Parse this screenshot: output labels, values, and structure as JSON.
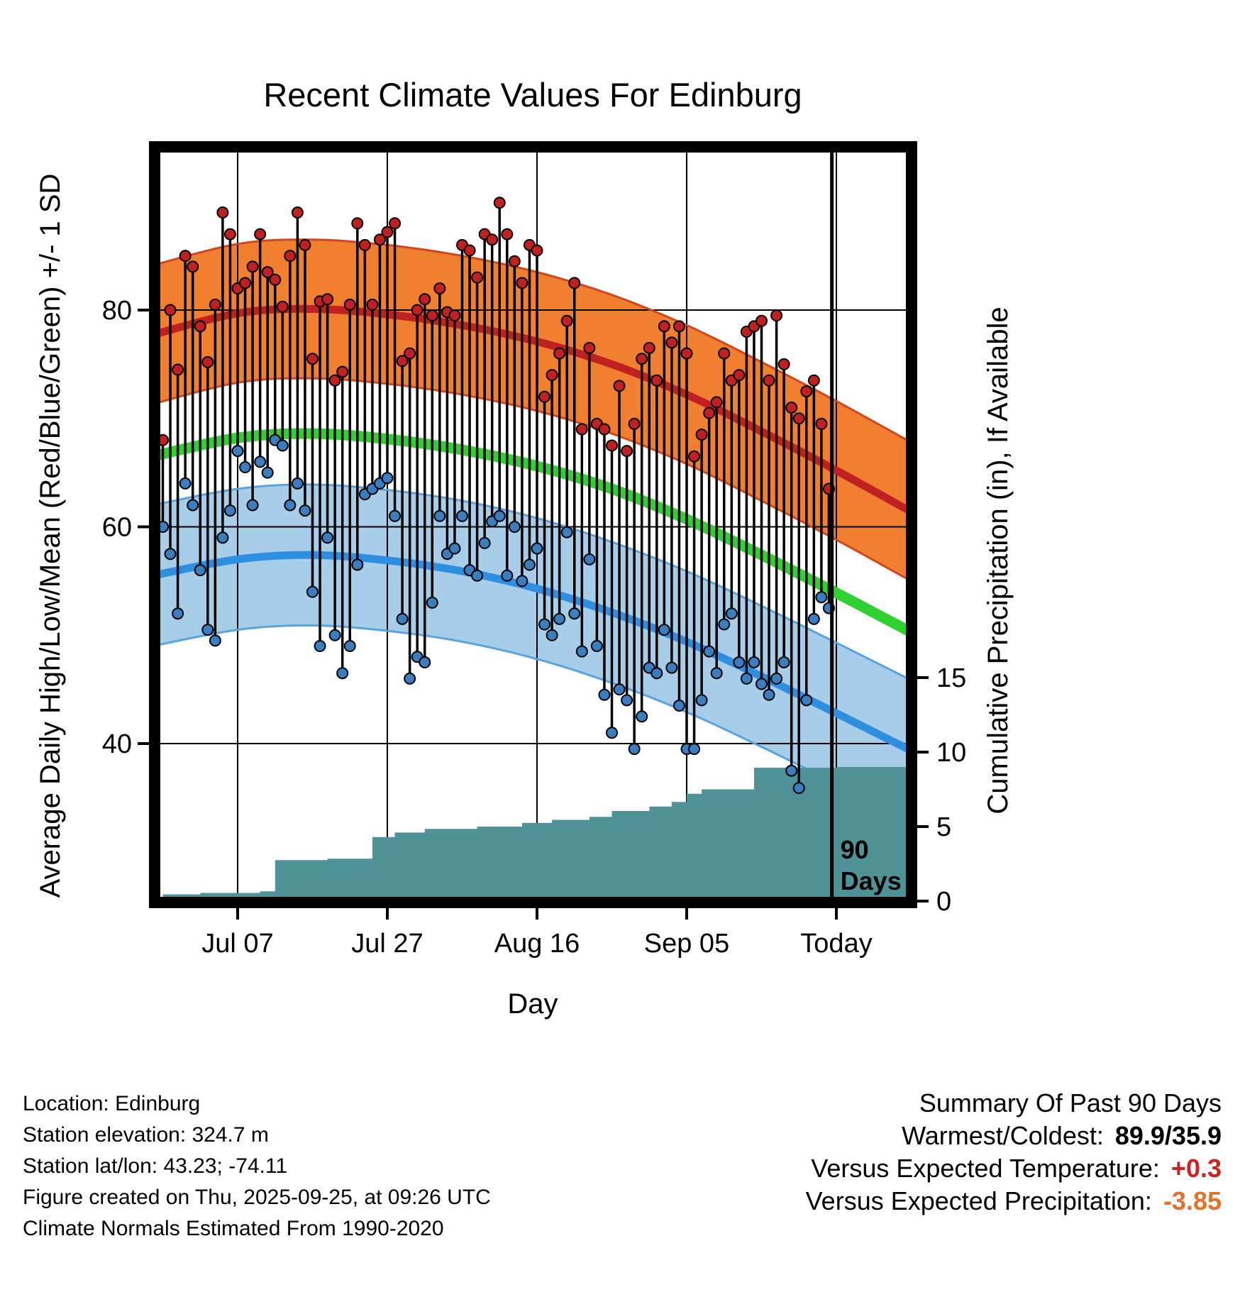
{
  "chart_data": {
    "type": "line",
    "title": "Recent Climate Values For Edinburg",
    "xlabel": "Day",
    "ylabel_left": "Average Daily High/Low/Mean (Red/Blue/Green) +/- 1 SD",
    "ylabel_right": "Cumulative Precipitation (in), If Available",
    "x_axis": {
      "unit": "day index (0 = start of 90-day window, 90 = Today)",
      "ticks": [
        {
          "day": 10,
          "label": "Jul 07"
        },
        {
          "day": 30,
          "label": "Jul 27"
        },
        {
          "day": 50,
          "label": "Aug 16"
        },
        {
          "day": 70,
          "label": "Sep 05"
        },
        {
          "day": 90,
          "label": "Today"
        }
      ],
      "range": [
        -1.1,
        100.1
      ]
    },
    "y_left_axis": {
      "ticks": [
        40,
        60,
        80
      ],
      "range": [
        25.3,
        95.1
      ]
    },
    "y_right_axis": {
      "ticks": [
        0,
        5,
        10,
        15
      ],
      "range": [
        0,
        50.6
      ]
    },
    "daily": {
      "highs": [
        68,
        80,
        74.5,
        85,
        84,
        78.5,
        75.2,
        80.5,
        89,
        87,
        82,
        82.5,
        84,
        87,
        83.5,
        82.8,
        80.3,
        85,
        89,
        86,
        75.5,
        80.8,
        81,
        73.5,
        74.3,
        80.5,
        88,
        86,
        80.5,
        86.5,
        87.2,
        88,
        75.3,
        76,
        80,
        81,
        79.5,
        82,
        79.8,
        79.5,
        86,
        85.5,
        83,
        87,
        86.5,
        89.9,
        87,
        84.5,
        82.5,
        86,
        85.5,
        72,
        74,
        76,
        79,
        82.5,
        69,
        76.5,
        69.5,
        69,
        67.5,
        73,
        67,
        69.5,
        75.5,
        76.5,
        73.5,
        78.5,
        77,
        78.5,
        76,
        66.5,
        68.5,
        70.5,
        71.5,
        76,
        73.5,
        74,
        78,
        78.5,
        79,
        73.5,
        79.5,
        75,
        71,
        70,
        72.5,
        73.5,
        69.5,
        63.5
      ],
      "lows": [
        60,
        57.5,
        52,
        64,
        62,
        56,
        50.5,
        49.5,
        59,
        61.5,
        67,
        65.5,
        62,
        66,
        65,
        68,
        67.5,
        62,
        64,
        61.5,
        54,
        49,
        59,
        50,
        46.5,
        49,
        56.5,
        63,
        63.5,
        64,
        64.5,
        61,
        51.5,
        46,
        48,
        47.5,
        53,
        61,
        57.5,
        58,
        61,
        56,
        55.5,
        58.5,
        60.5,
        61,
        55.5,
        60,
        55,
        56.5,
        58,
        51,
        50,
        51.5,
        59.5,
        52,
        48.5,
        57,
        49,
        44.5,
        41,
        45,
        44,
        39.5,
        42.5,
        47,
        46.5,
        50.5,
        47,
        43.5,
        39.5,
        39.5,
        44,
        48.5,
        46.5,
        51,
        52,
        47.5,
        46,
        47.5,
        45.5,
        44.5,
        46,
        47.5,
        37.5,
        35.9,
        44,
        51.5,
        53.5,
        52.5
      ]
    },
    "normals": {
      "days": [
        -2,
        10,
        20,
        30,
        40,
        50,
        60,
        70,
        80,
        90,
        101
      ],
      "high_mean": [
        77.6,
        79.7,
        80.1,
        79.6,
        78.6,
        77.1,
        75.0,
        72.2,
        68.8,
        65.2,
        61.0
      ],
      "high_sd": 6.4,
      "low_mean": [
        55.4,
        57.0,
        57.4,
        56.9,
        55.9,
        54.3,
        52.1,
        49.4,
        46.2,
        42.8,
        39.0
      ],
      "low_sd": 6.5,
      "mean": [
        66.4,
        68.2,
        68.6,
        68.1,
        67.1,
        65.6,
        63.5,
        60.7,
        57.4,
        53.9,
        49.9
      ]
    },
    "precip_cumulative_steps": [
      [
        0,
        0.45
      ],
      [
        5,
        0.55
      ],
      [
        13,
        0.65
      ],
      [
        15,
        2.75
      ],
      [
        22,
        2.85
      ],
      [
        28,
        4.3
      ],
      [
        31,
        4.6
      ],
      [
        35,
        4.85
      ],
      [
        42,
        5.0
      ],
      [
        48,
        5.25
      ],
      [
        52,
        5.45
      ],
      [
        57,
        5.65
      ],
      [
        60,
        6.05
      ],
      [
        65,
        6.35
      ],
      [
        68,
        6.65
      ],
      [
        70,
        7.2
      ],
      [
        72,
        7.5
      ],
      [
        79,
        8.95
      ],
      [
        90,
        9.0
      ]
    ],
    "ninety_day_marker": {
      "day": 89.4,
      "label_lines": [
        "90",
        "Days"
      ]
    }
  },
  "colors": {
    "high_band": "#f08030",
    "high_band_edge": "#d2451e",
    "high_line": "#c02020",
    "low_band": "#a8cde8",
    "low_band_edge": "#58a5de",
    "low_line": "#2e8ee0",
    "mean_line": "#2fd02f",
    "precip_fill": "#4f9399",
    "stem": "#000000",
    "high_dot": "#c02020",
    "low_dot": "#3a7ec0",
    "grid": "#000000",
    "marker_line": "#000000"
  },
  "footer": {
    "lines": [
      "Location: Edinburg",
      "Station elevation: 324.7 m",
      "Station lat/lon: 43.23; -74.11",
      "Figure created on Thu, 2025-09-25, at 09:26 UTC",
      "Climate Normals Estimated From 1990-2020"
    ]
  },
  "summary": {
    "title": "Summary Of Past 90 Days",
    "rows": [
      {
        "label": "Warmest/Coldest:",
        "value": "89.9/35.9",
        "color": "#000000"
      },
      {
        "label": "Versus Expected Temperature:",
        "value": "+0.3",
        "color": "#cc2222"
      },
      {
        "label": "Versus Expected Precipitation:",
        "value": "-3.85",
        "color": "#e2712a"
      }
    ]
  }
}
